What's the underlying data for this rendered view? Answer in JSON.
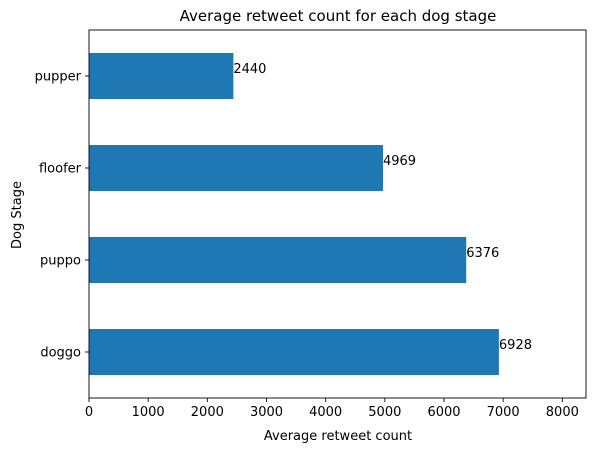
{
  "chart_data": {
    "type": "bar",
    "orientation": "horizontal",
    "title": "Average retweet count for each dog stage",
    "xlabel": "Average retweet count",
    "ylabel": "Dog Stage",
    "categories": [
      "doggo",
      "puppo",
      "floofer",
      "pupper"
    ],
    "values": [
      6928,
      6376,
      4969,
      2440
    ],
    "data_labels": [
      "6928",
      "6376",
      "4969",
      "2440"
    ],
    "xlim": [
      0,
      8400
    ],
    "xticks": [
      0,
      1000,
      2000,
      3000,
      4000,
      5000,
      6000,
      7000,
      8000
    ],
    "xtick_labels": [
      "0",
      "1000",
      "2000",
      "3000",
      "4000",
      "5000",
      "6000",
      "7000",
      "8000"
    ],
    "bar_color": "#1f77b4",
    "grid": false,
    "legend": "none"
  }
}
